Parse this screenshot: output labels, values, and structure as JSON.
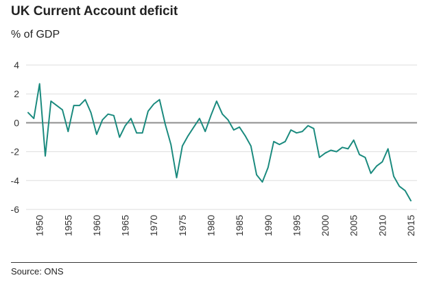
{
  "chart_data": {
    "type": "line",
    "title": "UK Current Account deficit",
    "ylabel": "% of GDP",
    "xlabel": "",
    "source": "Source: ONS",
    "xlim": [
      1948,
      2015
    ],
    "ylim": [
      -6,
      4
    ],
    "yticks": [
      4,
      2,
      0,
      -2,
      -4,
      -6
    ],
    "xticks": [
      1950,
      1955,
      1960,
      1965,
      1970,
      1975,
      1980,
      1985,
      1990,
      1995,
      2000,
      2005,
      2010,
      2015
    ],
    "grid": true,
    "legend": "none",
    "colors": {
      "line": "#1a8a7e",
      "zero_line": "#999999",
      "grid": "#dddddd"
    },
    "series": [
      {
        "x": [
          1948,
          1949,
          1950,
          1951,
          1952,
          1953,
          1954,
          1955,
          1956,
          1957,
          1958,
          1959,
          1960,
          1961,
          1962,
          1963,
          1964,
          1965,
          1966,
          1967,
          1968,
          1969,
          1970,
          1971,
          1972,
          1973,
          1974,
          1975,
          1976,
          1977,
          1978,
          1979,
          1980,
          1981,
          1982,
          1983,
          1984,
          1985,
          1986,
          1987,
          1988,
          1989,
          1990,
          1991,
          1992,
          1993,
          1994,
          1995,
          1996,
          1997,
          1998,
          1999,
          2000,
          2001,
          2002,
          2003,
          2004,
          2005,
          2006,
          2007,
          2008,
          2009,
          2010,
          2011,
          2012,
          2013,
          2014,
          2015
        ],
        "y": [
          0.7,
          0.3,
          2.7,
          -2.3,
          1.5,
          1.2,
          0.9,
          -0.6,
          1.2,
          1.2,
          1.6,
          0.7,
          -0.8,
          0.2,
          0.6,
          0.5,
          -1.0,
          -0.2,
          0.3,
          -0.7,
          -0.7,
          0.8,
          1.3,
          1.6,
          -0.1,
          -1.5,
          -3.8,
          -1.6,
          -0.9,
          -0.3,
          0.3,
          -0.6,
          0.5,
          1.5,
          0.6,
          0.2,
          -0.5,
          -0.3,
          -0.9,
          -1.6,
          -3.6,
          -4.1,
          -3.1,
          -1.3,
          -1.5,
          -1.3,
          -0.5,
          -0.7,
          -0.6,
          -0.2,
          -0.4,
          -2.4,
          -2.1,
          -1.9,
          -2.0,
          -1.7,
          -1.8,
          -1.2,
          -2.2,
          -2.4,
          -3.5,
          -3.0,
          -2.7,
          -1.8,
          -3.7,
          -4.4,
          -4.7,
          -5.4
        ]
      }
    ]
  }
}
